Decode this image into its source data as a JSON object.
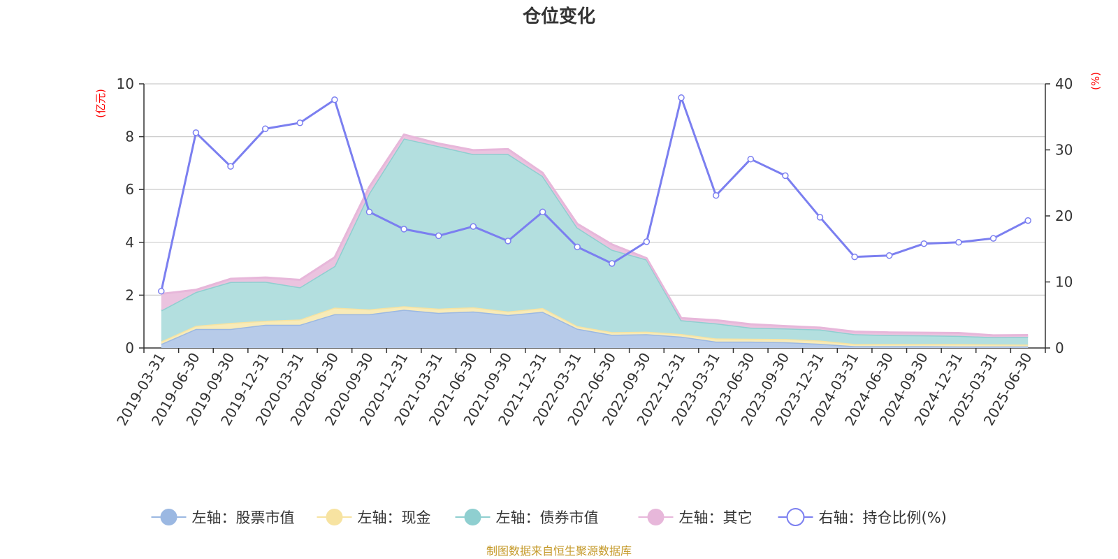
{
  "chart_data": {
    "type": "area",
    "title": "仓位变化",
    "left_unit": "(亿元)",
    "right_unit": "(%)",
    "left_axis": {
      "min": 0,
      "max": 10,
      "ticks": [
        "0",
        "2",
        "4",
        "6",
        "8",
        "10"
      ]
    },
    "right_axis": {
      "min": 0,
      "max": 40,
      "ticks": [
        "0",
        "10",
        "20",
        "30",
        "40"
      ]
    },
    "grid": true,
    "legend_position": "bottom",
    "categories": [
      "2019-03-31",
      "2019-06-30",
      "2019-09-30",
      "2019-12-31",
      "2020-03-31",
      "2020-06-30",
      "2020-09-30",
      "2020-12-31",
      "2021-03-31",
      "2021-06-30",
      "2021-09-30",
      "2021-12-31",
      "2022-03-31",
      "2022-06-30",
      "2022-09-30",
      "2022-12-31",
      "2023-03-31",
      "2023-06-30",
      "2023-09-30",
      "2023-12-31",
      "2024-03-31",
      "2024-06-30",
      "2024-09-30",
      "2024-12-31",
      "2025-03-31",
      "2025-06-30"
    ],
    "series": [
      {
        "name": "左轴：股票市值",
        "axis": "left",
        "stack": true,
        "color": "#9bb8e2",
        "fill": "#b7cbe9",
        "values": [
          0.15,
          0.72,
          0.72,
          0.88,
          0.88,
          1.28,
          1.28,
          1.45,
          1.33,
          1.38,
          1.25,
          1.37,
          0.73,
          0.5,
          0.52,
          0.43,
          0.24,
          0.24,
          0.22,
          0.16,
          0.07,
          0.07,
          0.07,
          0.06,
          0.06,
          0.06
        ]
      },
      {
        "name": "左轴：现金",
        "axis": "left",
        "stack": true,
        "color": "#f7e3a1",
        "fill": "#f8ebb8",
        "values": [
          0.1,
          0.12,
          0.23,
          0.15,
          0.2,
          0.25,
          0.18,
          0.13,
          0.16,
          0.16,
          0.13,
          0.14,
          0.1,
          0.1,
          0.1,
          0.1,
          0.12,
          0.11,
          0.12,
          0.12,
          0.08,
          0.08,
          0.08,
          0.09,
          0.08,
          0.07
        ]
      },
      {
        "name": "左轴：债券市值",
        "axis": "left",
        "stack": true,
        "color": "#8fcfd0",
        "fill": "#b3dfdf",
        "values": [
          1.17,
          1.28,
          1.55,
          1.48,
          1.22,
          1.57,
          4.4,
          6.35,
          6.15,
          5.8,
          5.97,
          5.0,
          3.73,
          3.12,
          2.73,
          0.52,
          0.57,
          0.42,
          0.4,
          0.42,
          0.37,
          0.34,
          0.33,
          0.31,
          0.27,
          0.29
        ]
      },
      {
        "name": "左轴：其它",
        "axis": "left",
        "stack": true,
        "color": "#e7b7da",
        "fill": "#ebc3df",
        "values": [
          0.63,
          0.08,
          0.12,
          0.16,
          0.28,
          0.33,
          0.24,
          0.15,
          0.1,
          0.15,
          0.18,
          0.12,
          0.14,
          0.2,
          0.05,
          0.08,
          0.12,
          0.13,
          0.09,
          0.07,
          0.1,
          0.1,
          0.1,
          0.11,
          0.07,
          0.07
        ]
      },
      {
        "name": "右轴：持仓比例(%)",
        "axis": "right",
        "type": "line",
        "color": "#7b7ff0",
        "values": [
          8.6,
          32.6,
          27.5,
          33.2,
          34.1,
          37.6,
          20.6,
          18.0,
          17.0,
          18.4,
          16.2,
          20.6,
          15.3,
          12.8,
          16.1,
          37.9,
          23.1,
          28.6,
          26.1,
          19.8,
          13.8,
          14.0,
          15.8,
          16.0,
          16.6,
          19.3
        ]
      }
    ]
  },
  "footer": {
    "source": "制图数据来自恒生聚源数据库"
  }
}
